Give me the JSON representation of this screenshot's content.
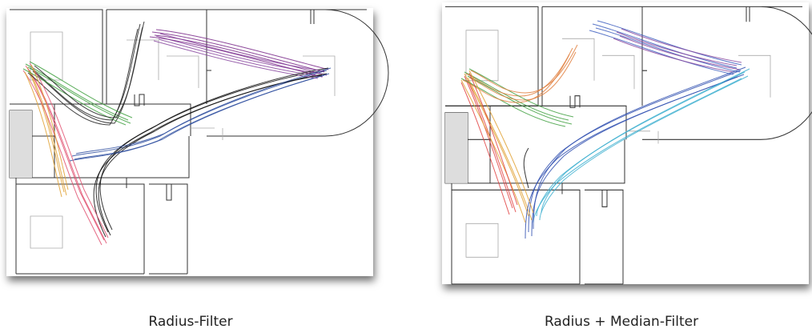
{
  "panels": [
    {
      "caption": "Radius-Filter"
    },
    {
      "caption": "Radius + Median-Filter"
    }
  ]
}
